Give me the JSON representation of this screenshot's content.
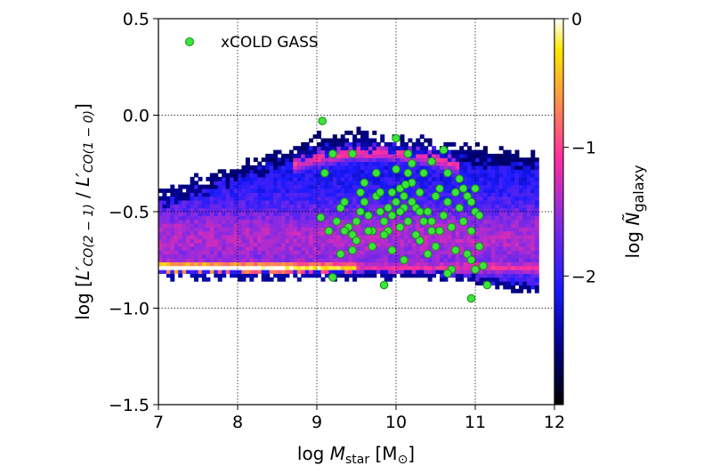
{
  "chart_data": {
    "type": "heatmap",
    "xlabel": "log M_star [M_⊙]",
    "ylabel": "log [L'CO(2−1) / L'CO(1−0)]",
    "xlim": [
      7,
      12
    ],
    "ylim": [
      -1.5,
      0.5
    ],
    "x_ticks": [
      "7",
      "8",
      "9",
      "10",
      "11",
      "12"
    ],
    "y_ticks": [
      "−1.5",
      "−1.0",
      "−0.5",
      "0.0",
      "0.5"
    ],
    "grid": true,
    "grid_lines_x": [
      8,
      9,
      10,
      11
    ],
    "grid_lines_y": [
      -1.0,
      -0.5,
      0.0
    ],
    "colorbar": {
      "label": "log Ñ_galaxy",
      "range": [
        -3.0,
        0.0
      ],
      "ticks": [
        "0",
        "−1",
        "−2"
      ],
      "tick_values": [
        0,
        -1,
        -2
      ],
      "colors": [
        "#000000",
        "#0000ff",
        "#8a2be2",
        "#ff2ea0",
        "#ff9a40",
        "#ffe800",
        "#ffffff"
      ]
    },
    "series": [
      {
        "name": "xCOLD GASS",
        "type": "scatter",
        "color": "#39e639",
        "points": [
          [
            9.07,
            -0.03
          ],
          [
            9.2,
            -0.84
          ],
          [
            9.85,
            -0.88
          ],
          [
            10.95,
            -0.95
          ],
          [
            11.15,
            -0.88
          ],
          [
            9.1,
            -0.3
          ],
          [
            9.05,
            -0.53
          ],
          [
            9.15,
            -0.6
          ],
          [
            9.25,
            -0.55
          ],
          [
            9.3,
            -0.48
          ],
          [
            9.35,
            -0.45
          ],
          [
            9.4,
            -0.58
          ],
          [
            9.45,
            -0.62
          ],
          [
            9.5,
            -0.55
          ],
          [
            9.55,
            -0.5
          ],
          [
            9.6,
            -0.45
          ],
          [
            9.65,
            -0.52
          ],
          [
            9.7,
            -0.6
          ],
          [
            9.75,
            -0.42
          ],
          [
            9.8,
            -0.5
          ],
          [
            9.85,
            -0.55
          ],
          [
            9.9,
            -0.48
          ],
          [
            9.95,
            -0.52
          ],
          [
            10.0,
            -0.45
          ],
          [
            10.05,
            -0.38
          ],
          [
            10.1,
            -0.42
          ],
          [
            10.15,
            -0.3
          ],
          [
            10.2,
            -0.35
          ],
          [
            10.25,
            -0.48
          ],
          [
            10.3,
            -0.4
          ],
          [
            10.35,
            -0.55
          ],
          [
            10.4,
            -0.5
          ],
          [
            10.45,
            -0.6
          ],
          [
            10.5,
            -0.42
          ],
          [
            10.55,
            -0.38
          ],
          [
            10.6,
            -0.52
          ],
          [
            10.65,
            -0.45
          ],
          [
            10.7,
            -0.58
          ],
          [
            10.75,
            -0.4
          ],
          [
            10.8,
            -0.48
          ],
          [
            10.85,
            -0.55
          ],
          [
            10.9,
            -0.42
          ],
          [
            10.95,
            -0.6
          ],
          [
            11.0,
            -0.5
          ],
          [
            11.05,
            -0.68
          ],
          [
            11.1,
            -0.78
          ],
          [
            10.9,
            -0.72
          ],
          [
            10.7,
            -0.8
          ],
          [
            10.5,
            -0.68
          ],
          [
            10.3,
            -0.65
          ],
          [
            10.1,
            -0.75
          ],
          [
            9.95,
            -0.7
          ],
          [
            9.7,
            -0.68
          ],
          [
            9.45,
            -0.7
          ],
          [
            9.3,
            -0.72
          ],
          [
            9.2,
            -0.2
          ],
          [
            9.45,
            -0.2
          ],
          [
            10.0,
            -0.12
          ],
          [
            10.15,
            -0.2
          ],
          [
            10.45,
            -0.24
          ],
          [
            10.6,
            -0.18
          ],
          [
            9.6,
            -0.35
          ],
          [
            9.75,
            -0.3
          ],
          [
            9.55,
            -0.4
          ],
          [
            10.0,
            -0.28
          ],
          [
            10.2,
            -0.25
          ],
          [
            10.35,
            -0.3
          ],
          [
            10.65,
            -0.3
          ],
          [
            10.8,
            -0.33
          ],
          [
            11.0,
            -0.38
          ],
          [
            11.05,
            -0.52
          ],
          [
            10.95,
            -0.45
          ],
          [
            10.85,
            -0.38
          ],
          [
            9.9,
            -0.6
          ],
          [
            10.05,
            -0.58
          ],
          [
            10.25,
            -0.62
          ],
          [
            10.45,
            -0.55
          ],
          [
            10.15,
            -0.55
          ],
          [
            9.8,
            -0.4
          ],
          [
            9.65,
            -0.6
          ],
          [
            10.3,
            -0.5
          ],
          [
            10.55,
            -0.6
          ],
          [
            10.75,
            -0.7
          ],
          [
            10.95,
            -0.75
          ],
          [
            11.0,
            -0.8
          ],
          [
            9.35,
            -0.6
          ],
          [
            9.5,
            -0.65
          ],
          [
            10.65,
            -0.82
          ],
          [
            10.4,
            -0.72
          ],
          [
            9.85,
            -0.62
          ],
          [
            10.1,
            -0.48
          ],
          [
            10.2,
            -0.45
          ],
          [
            9.95,
            -0.4
          ],
          [
            10.05,
            -0.5
          ],
          [
            10.12,
            -0.36
          ]
        ]
      }
    ]
  }
}
